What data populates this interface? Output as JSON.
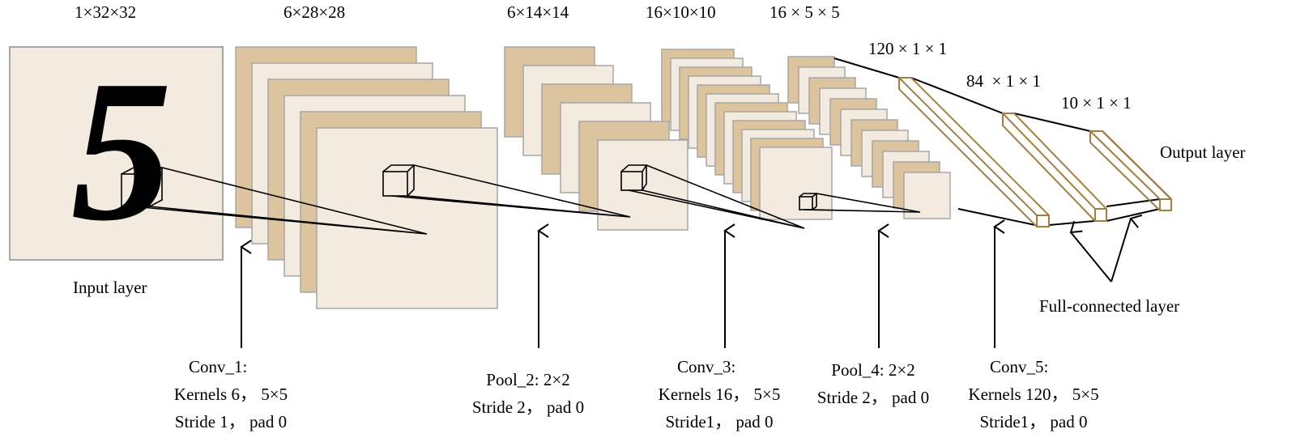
{
  "dims": {
    "input": "1×32×32",
    "c1": "6×28×28",
    "s2": "6×14×14",
    "c3": "16×10×10",
    "s4": "16 × 5 × 5",
    "f5": "120 × 1 × 1",
    "f6": "84  × 1 × 1",
    "out": "10 × 1 × 1"
  },
  "layers": {
    "input": "Input layer",
    "output": "Output layer",
    "fc": "Full-connected layer"
  },
  "digit": "5",
  "captions": {
    "conv1": [
      "Conv_1:",
      "Kernels 6， 5×5",
      "Stride 1， pad 0"
    ],
    "pool2": [
      "Pool_2:  2×2",
      "Stride 2， pad 0"
    ],
    "conv3": [
      "Conv_3:",
      "Kernels 16， 5×5",
      "Stride1， pad 0"
    ],
    "pool4": [
      "Pool_4:  2×2",
      "Stride 2， pad 0"
    ],
    "conv5": [
      "Conv_5:",
      "Kernels 120， 5×5",
      "Stride1， pad 0"
    ]
  },
  "colors": {
    "map_dark": "#dcc49e",
    "map_light": "#f3ebe0",
    "border": "#a6a6a6",
    "fc_stroke": "#a37f3f"
  }
}
